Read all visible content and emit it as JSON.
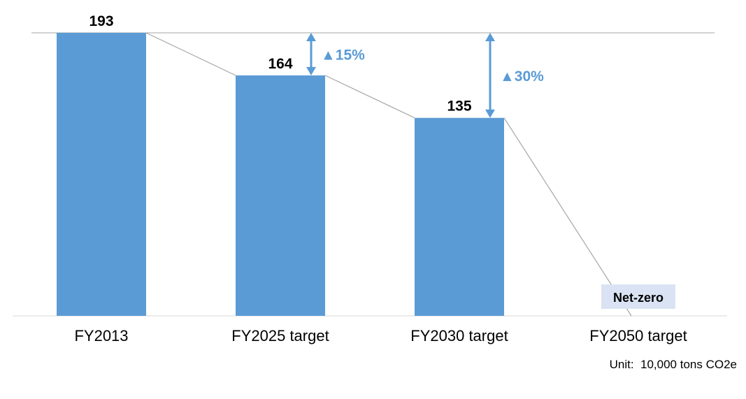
{
  "chart_data": {
    "type": "bar",
    "categories": [
      "FY2013",
      "FY2025 target",
      "FY2030 target",
      "FY2050 target"
    ],
    "values": [
      193,
      164,
      135,
      0
    ],
    "value_labels": [
      "193",
      "164",
      "135",
      ""
    ],
    "ylim": [
      0,
      193
    ],
    "reductions": [
      {
        "category": "FY2025 target",
        "label": "▲15%"
      },
      {
        "category": "FY2030 target",
        "label": "▲30%"
      }
    ],
    "endpoint_label": "Net-zero",
    "unit": "Unit:  10,000 tons CO2e",
    "colors": {
      "bar": "#5b9bd5",
      "arrow": "#5b9bd5",
      "connector": "#a6a6a6",
      "gridline": "#a6a6a6",
      "netzero_box": "#dae3f3"
    }
  }
}
